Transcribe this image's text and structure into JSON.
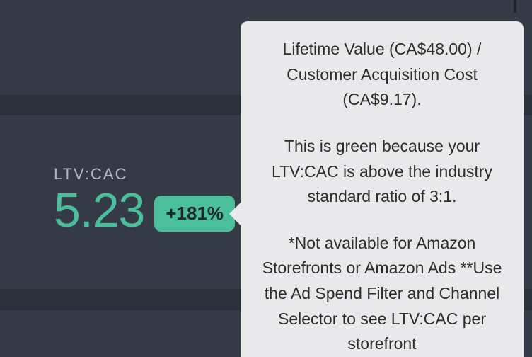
{
  "colors": {
    "background": "#2a3039",
    "panel": "#343b46",
    "label_text": "#aeb7c2",
    "value_text": "#4bbf9b",
    "badge_bg": "#4bbf9b",
    "badge_text": "#1e2a2a",
    "tooltip_bg": "#e9e9ec",
    "tooltip_text": "#2d2d2d"
  },
  "metric": {
    "label": "LTV:CAC",
    "value": "5.23",
    "change_badge": "+181%"
  },
  "tooltip": {
    "line1": "Lifetime Value (CA$48.00) / Customer Acquisition Cost (CA$9.17).",
    "line2": "This is green because your LTV:CAC is above the industry standard ratio of 3:1.",
    "line3": "*Not available for Amazon Storefronts or Amazon Ads **Use the Ad Spend Filter and Channel Selector to see LTV:CAC per storefront"
  }
}
